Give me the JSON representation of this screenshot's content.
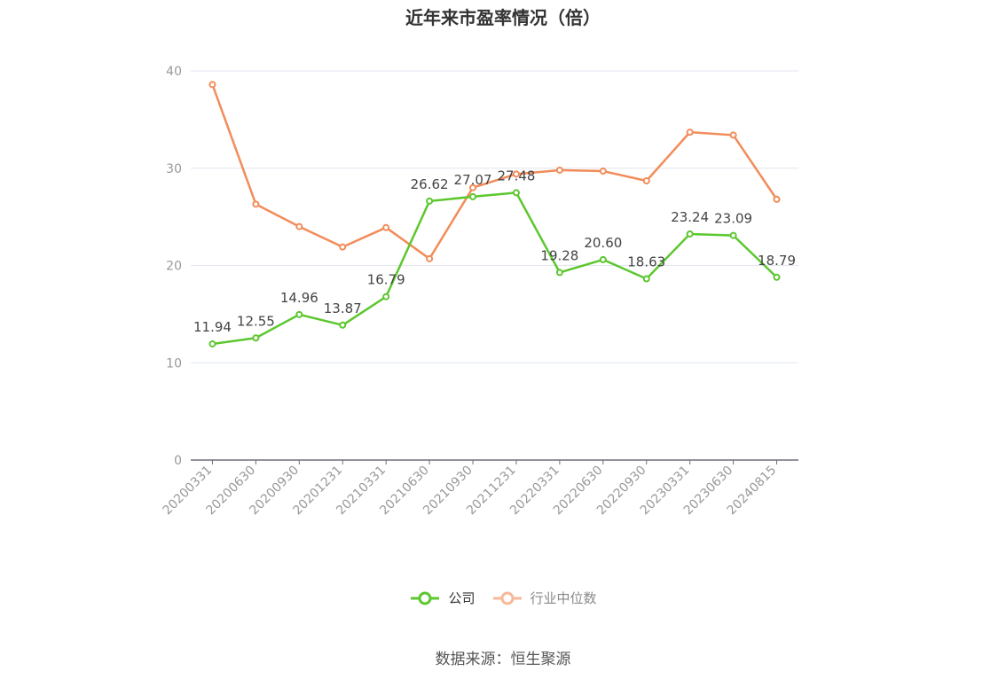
{
  "title": "近年来市盈率情况（倍）",
  "source": "数据来源：恒生聚源",
  "colors": {
    "company": "#5cc72e",
    "industry": "#f28c5a",
    "industry_legend": "#f7b99a",
    "grid": "#e0e6f1",
    "axis": "#6e7079",
    "tick_label": "#999999",
    "data_label": "#444444"
  },
  "chart_data": {
    "type": "line",
    "title": "近年来市盈率情况（倍）",
    "categories": [
      "20200331",
      "20200630",
      "20200930",
      "20201231",
      "20210331",
      "20210630",
      "20210930",
      "20211231",
      "20220331",
      "20220630",
      "20220930",
      "20230331",
      "20230630",
      "20240815"
    ],
    "ylim": [
      0,
      40
    ],
    "yticks": [
      0,
      10,
      20,
      30,
      40
    ],
    "grid": true,
    "legend_position": "bottom",
    "series": [
      {
        "name": "公司",
        "values": [
          11.94,
          12.55,
          14.96,
          13.87,
          16.79,
          26.62,
          27.07,
          27.48,
          19.28,
          20.6,
          18.63,
          23.24,
          23.09,
          18.79
        ],
        "labels": [
          "11.94",
          "12.55",
          "14.96",
          "13.87",
          "16.79",
          "26.62",
          "27.07",
          "27.48",
          "19.28",
          "20.60",
          "18.63",
          "23.24",
          "23.09",
          "18.79"
        ]
      },
      {
        "name": "行业中位数",
        "values": [
          38.6,
          26.3,
          24.0,
          21.9,
          23.9,
          20.7,
          28.0,
          29.4,
          29.8,
          29.7,
          28.7,
          33.7,
          33.4,
          26.8
        ]
      }
    ]
  },
  "legend": [
    {
      "label": "公司",
      "series_index": 0
    },
    {
      "label": "行业中位数",
      "series_index": 1
    }
  ]
}
